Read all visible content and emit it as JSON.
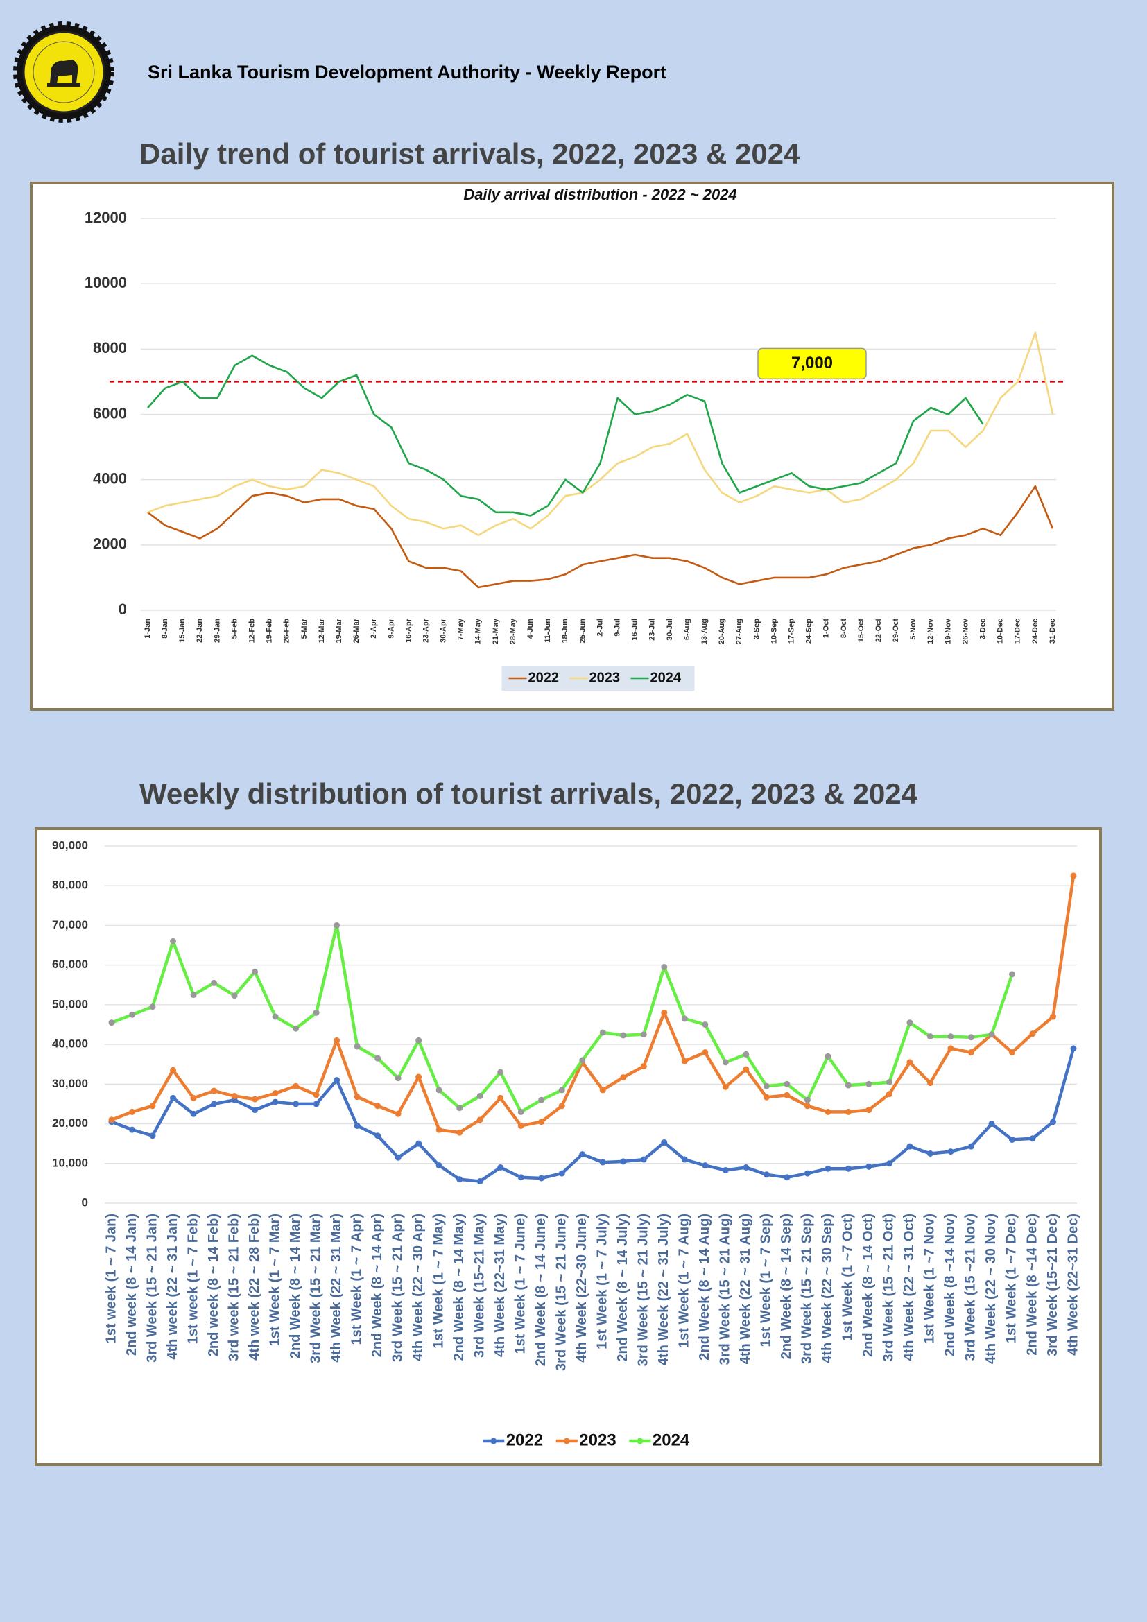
{
  "header": "Sri Lanka Tourism Development Authority - Weekly Report",
  "section_titles": [
    "Daily trend of tourist arrivals, 2022, 2023 & 2024",
    "Weekly distribution of tourist arrivals, 2022, 2023 & 2024"
  ],
  "chart_data": [
    {
      "type": "line",
      "title": "Daily arrival distribution - 2022 ~ 2024",
      "categories": [
        "1-Jan",
        "8-Jan",
        "15-Jan",
        "22-Jan",
        "29-Jan",
        "5-Feb",
        "12-Feb",
        "19-Feb",
        "26-Feb",
        "5-Mar",
        "12-Mar",
        "19-Mar",
        "26-Mar",
        "2-Apr",
        "9-Apr",
        "16-Apr",
        "23-Apr",
        "30-Apr",
        "7-May",
        "14-May",
        "21-May",
        "28-May",
        "4-Jun",
        "11-Jun",
        "18-Jun",
        "25-Jun",
        "2-Jul",
        "9-Jul",
        "16-Jul",
        "23-Jul",
        "30-Jul",
        "6-Aug",
        "13-Aug",
        "20-Aug",
        "27-Aug",
        "3-Sep",
        "10-Sep",
        "17-Sep",
        "24-Sep",
        "1-Oct",
        "8-Oct",
        "15-Oct",
        "22-Oct",
        "29-Oct",
        "5-Nov",
        "12-Nov",
        "19-Nov",
        "26-Nov",
        "3-Dec",
        "10-Dec",
        "17-Dec",
        "24-Dec",
        "31-Dec"
      ],
      "series": [
        {
          "name": "2022",
          "color": "#c55a11",
          "values": [
            3000,
            2600,
            2400,
            2200,
            2500,
            3000,
            3500,
            3600,
            3500,
            3300,
            3400,
            3400,
            3200,
            3100,
            2500,
            1500,
            1300,
            1300,
            1200,
            700,
            800,
            900,
            900,
            950,
            1100,
            1400,
            1500,
            1600,
            1700,
            1600,
            1600,
            1500,
            1300,
            1000,
            800,
            900,
            1000,
            1000,
            1000,
            1100,
            1300,
            1400,
            1500,
            1700,
            1900,
            2000,
            2200,
            2300,
            2500,
            2300,
            3000,
            3800,
            2500
          ]
        },
        {
          "name": "2023",
          "color": "#f5d77e",
          "values": [
            3000,
            3200,
            3300,
            3400,
            3500,
            3800,
            4000,
            3800,
            3700,
            3800,
            4300,
            4200,
            4000,
            3800,
            3200,
            2800,
            2700,
            2500,
            2600,
            2300,
            2600,
            2800,
            2500,
            2900,
            3500,
            3600,
            4000,
            4500,
            4700,
            5000,
            5100,
            5400,
            4300,
            3600,
            3300,
            3500,
            3800,
            3700,
            3600,
            3700,
            3300,
            3400,
            3700,
            4000,
            4500,
            5500,
            5500,
            5000,
            5500,
            6500,
            7000,
            8500,
            6000
          ]
        },
        {
          "name": "2024",
          "color": "#1fa64a",
          "values": [
            6200,
            6800,
            7000,
            6500,
            6500,
            7500,
            7800,
            7500,
            7300,
            6800,
            6500,
            7000,
            7200,
            6000,
            5600,
            4500,
            4300,
            4000,
            3500,
            3400,
            3000,
            3000,
            2900,
            3200,
            4000,
            3600,
            4500,
            6500,
            6000,
            6100,
            6300,
            6600,
            6400,
            4500,
            3600,
            3800,
            4000,
            4200,
            3800,
            3700,
            3800,
            3900,
            4200,
            4500,
            5800,
            6200,
            6000,
            6500,
            5700,
            null,
            null,
            null,
            null
          ]
        }
      ],
      "ylim": [
        0,
        12000
      ],
      "yticks": [
        0,
        2000,
        4000,
        6000,
        8000,
        10000,
        12000
      ],
      "grid": true,
      "markers": false,
      "reference_line": {
        "value": 7000,
        "label": "7,000",
        "color": "#e00000"
      }
    },
    {
      "type": "line",
      "categories": [
        "1st week (1 ~ 7 Jan)",
        "2nd week (8 ~ 14 Jan)",
        "3rd Week (15 ~ 21 Jan)",
        "4th week (22 ~ 31 Jan)",
        "1st week (1 ~ 7 Feb)",
        "2nd week (8 ~ 14 Feb)",
        "3rd week (15 ~ 21 Feb)",
        "4th week (22 ~ 28 Feb)",
        "1st Week (1 ~ 7 Mar)",
        "2nd Week (8 ~ 14 Mar)",
        "3rd Week (15 ~ 21 Mar)",
        "4th Week (22 ~ 31 Mar)",
        "1st Week (1 ~ 7 Apr)",
        "2nd Week (8 ~ 14 Apr)",
        "3rd Week (15 ~ 21 Apr)",
        "4th Week (22 ~ 30 Apr)",
        "1st Week (1 ~ 7 May)",
        "2nd Week (8 ~ 14 May)",
        "3rd Week (15~21 May)",
        "4th Week (22~31 May)",
        "1st Week (1 ~ 7 June)",
        "2nd Week (8 ~ 14 June)",
        "3rd Week (15 ~ 21 June)",
        "4th Week (22~30 June)",
        "1st Week (1 ~ 7 July)",
        "2nd Week (8 ~ 14 July)",
        "3rd Week (15 ~ 21 July)",
        "4th Week (22 ~ 31 July)",
        "1st Week (1 ~ 7 Aug)",
        "2nd Week (8 ~ 14 Aug)",
        "3rd Week (15 ~ 21 Aug)",
        "4th Week (22 ~ 31 Aug)",
        "1st Week (1 ~ 7 Sep)",
        "2nd Week (8 ~ 14 Sep)",
        "3rd Week (15 ~ 21 Sep)",
        "4th Week (22 ~ 30 Sep)",
        "1st Week (1 ~7 Oct)",
        "2nd Week (8 ~ 14 Oct)",
        "3rd Week (15 ~ 21 Oct)",
        "4th Week (22 ~ 31 Oct)",
        "1st Week (1 ~7 Nov)",
        "2nd Week (8 ~14 Nov)",
        "3rd Week (15 ~21 Nov)",
        "4th Week (22 ~ 30 Nov)",
        "1st Week (1 ~7 Dec)",
        "2nd Week (8 ~14 Dec)",
        "3rd Week (15~21 Dec)",
        "4th Week (22~31 Dec)"
      ],
      "series": [
        {
          "name": "2022",
          "color": "#4472c4",
          "values": [
            20500,
            18500,
            17000,
            26500,
            22500,
            25000,
            26000,
            23500,
            25500,
            25000,
            25000,
            31000,
            19500,
            17000,
            11500,
            15000,
            9500,
            6000,
            5500,
            9000,
            6500,
            6300,
            7500,
            12300,
            10300,
            10500,
            11000,
            15300,
            11000,
            9500,
            8300,
            9000,
            7200,
            6500,
            7500,
            8700,
            8700,
            9200,
            10000,
            14300,
            12500,
            13000,
            14300,
            20000,
            16000,
            16300,
            20500,
            39000
          ]
        },
        {
          "name": "2023",
          "color": "#ed7d31",
          "values": [
            21000,
            23000,
            24500,
            33500,
            26500,
            28300,
            27000,
            26200,
            27700,
            29500,
            27300,
            41000,
            26800,
            24500,
            22500,
            31800,
            18500,
            17800,
            21000,
            26500,
            19500,
            20500,
            24500,
            35500,
            28500,
            31700,
            34500,
            48000,
            35800,
            38000,
            29300,
            33700,
            26700,
            27200,
            24500,
            23000,
            23000,
            23500,
            27500,
            35500,
            30300,
            39000,
            38000,
            42500,
            38000,
            42700,
            47000,
            82500
          ]
        },
        {
          "name": "2024",
          "color": "#66ee44",
          "values": [
            45500,
            47500,
            49500,
            66000,
            52500,
            55500,
            52300,
            58300,
            47000,
            44000,
            48000,
            70000,
            39500,
            36500,
            31500,
            41000,
            28500,
            24000,
            27000,
            33000,
            23000,
            26000,
            28500,
            36000,
            43000,
            42300,
            42500,
            59500,
            46500,
            45000,
            35500,
            37500,
            29500,
            30000,
            26000,
            37000,
            29700,
            30000,
            30500,
            45500,
            42000,
            42000,
            41800,
            42500,
            57700,
            null,
            null,
            null
          ]
        }
      ],
      "ylim": [
        0,
        90000
      ],
      "yticks": [
        0,
        {
          "value": 10000,
          "label": "10,000"
        },
        {
          "value": 20000,
          "label": "20,000"
        },
        {
          "value": 30000,
          "label": "30,000"
        },
        {
          "value": 40000,
          "label": "40,000"
        },
        {
          "value": 50000,
          "label": "50,000"
        },
        {
          "value": 60000,
          "label": "60,000"
        },
        {
          "value": 70000,
          "label": "70,000"
        },
        {
          "value": 80000,
          "label": "80,000"
        },
        {
          "value": 90000,
          "label": "90,000"
        }
      ],
      "grid": true,
      "markers": true
    }
  ]
}
